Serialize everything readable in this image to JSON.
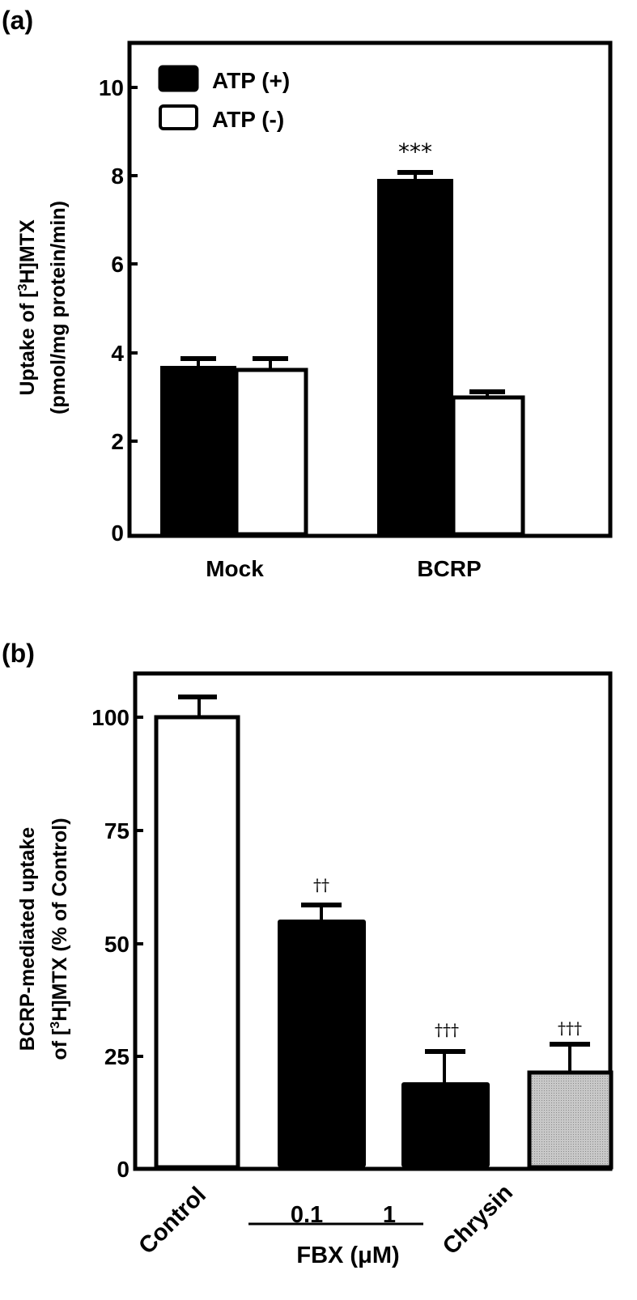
{
  "chart_data": [
    {
      "panel_label": "(a)",
      "type": "bar",
      "title": "",
      "xlabel": "",
      "ylabel_line1": "Uptake of  [3H]MTX",
      "ylabel_line2": "(pmol/mg protein/min)",
      "ylim": [
        0,
        11
      ],
      "yticks": [
        "0",
        "2",
        "4",
        "6",
        "8",
        "10"
      ],
      "categories": [
        "Mock",
        "BCRP"
      ],
      "legend": {
        "position": "upper-left",
        "entries": [
          "ATP (+)",
          "ATP (-)"
        ]
      },
      "series": [
        {
          "name": "ATP (+)",
          "color": "#000000",
          "values": [
            3.85,
            7.92
          ],
          "errors": [
            0.2,
            0.18
          ]
        },
        {
          "name": "ATP (-)",
          "color": "#ffffff",
          "values": [
            3.75,
            3.13
          ],
          "errors": [
            0.3,
            0.18
          ]
        }
      ],
      "annotations": [
        {
          "category": "BCRP",
          "series": "ATP (+)",
          "text": "***"
        }
      ],
      "grid": false
    },
    {
      "panel_label": "(b)",
      "type": "bar",
      "title": "",
      "ylabel_line1": "BCRP-mediated uptake",
      "ylabel_line2": "of  [3H]MTX (% of Control)",
      "ylim": [
        0,
        110
      ],
      "yticks": [
        "0",
        "25",
        "50",
        "75",
        "100"
      ],
      "categories": [
        "Control",
        "0.1",
        "1",
        "Chrysin"
      ],
      "group_label": "FBX (μM)",
      "values": [
        100,
        55,
        19,
        22
      ],
      "errors": [
        4.5,
        4,
        7.5,
        6
      ],
      "colors": [
        "#ffffff",
        "#000000",
        "#000000",
        "#b4b4b4"
      ],
      "annotations": [
        {
          "category": "0.1",
          "text": "††"
        },
        {
          "category": "1",
          "text": "†††"
        },
        {
          "category": "Chrysin",
          "text": "†††"
        }
      ],
      "grid": false
    }
  ]
}
